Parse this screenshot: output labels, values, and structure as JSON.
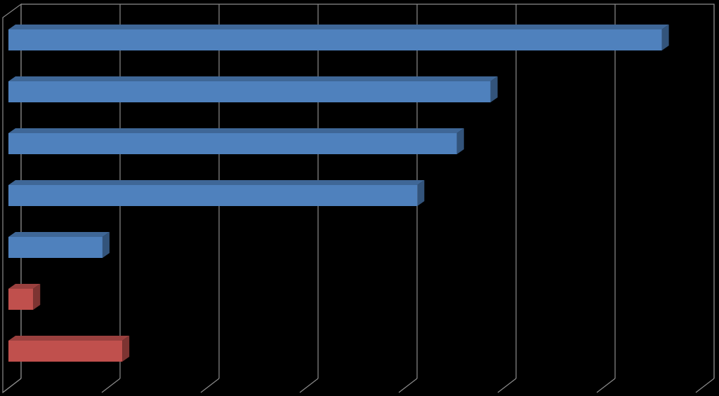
{
  "chart_data": {
    "type": "bar3d_horizontal",
    "categories": [
      null,
      null,
      null,
      null,
      null,
      null,
      null
    ],
    "values": [
      6.6,
      4.87,
      4.53,
      4.13,
      0.95,
      0.25,
      1.15
    ],
    "colors": [
      "#4f81bd",
      "#4f81bd",
      "#4f81bd",
      "#4f81bd",
      "#4f81bd",
      "#c0504d",
      "#c0504d"
    ],
    "xlim": [
      0,
      7
    ],
    "xticks": [
      0,
      1,
      2,
      3,
      4,
      5,
      6,
      7
    ],
    "grid": true
  }
}
